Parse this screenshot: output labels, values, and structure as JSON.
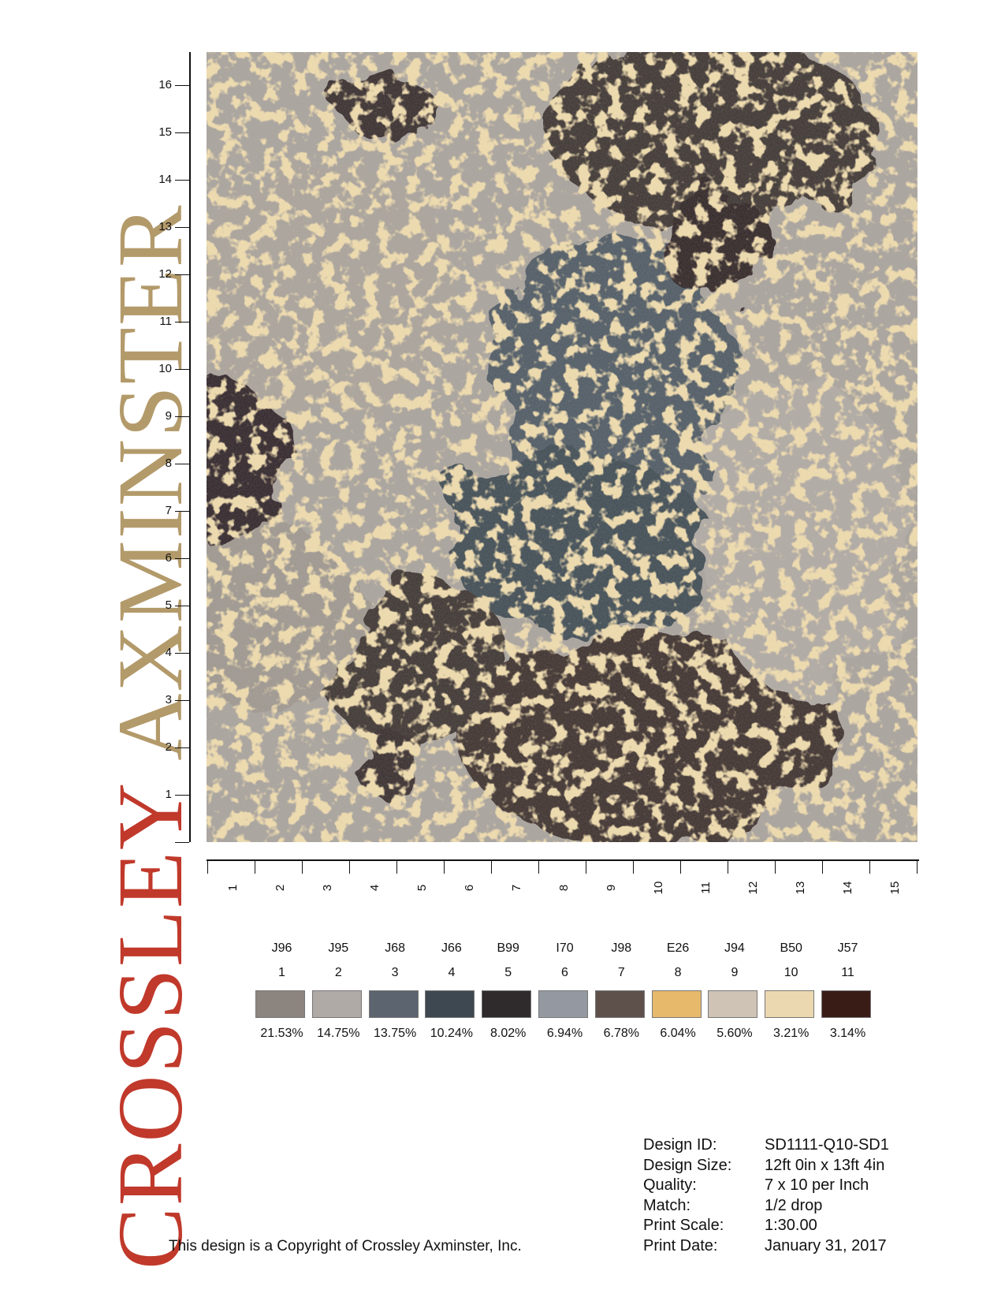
{
  "brand": {
    "word1": "CROSSLEY",
    "word2": "AXMINSTER"
  },
  "axes": {
    "y_labels": [
      "1",
      "2",
      "3",
      "4",
      "5",
      "6",
      "7",
      "8",
      "9",
      "10",
      "11",
      "12",
      "13",
      "14",
      "15",
      "16"
    ],
    "x_labels": [
      "1",
      "2",
      "3",
      "4",
      "5",
      "6",
      "7",
      "8",
      "9",
      "10",
      "11",
      "12",
      "13",
      "14",
      "15"
    ]
  },
  "colors": [
    {
      "code": "J96",
      "num": "1",
      "pct": "21.53%",
      "hex": "#8c847e"
    },
    {
      "code": "J95",
      "num": "2",
      "pct": "14.75%",
      "hex": "#b0aaa6"
    },
    {
      "code": "J68",
      "num": "3",
      "pct": "13.75%",
      "hex": "#5c6470"
    },
    {
      "code": "J66",
      "num": "4",
      "pct": "10.24%",
      "hex": "#3d4851"
    },
    {
      "code": "B99",
      "num": "5",
      "pct": "8.02%",
      "hex": "#2f2a2b"
    },
    {
      "code": "I70",
      "num": "6",
      "pct": "6.94%",
      "hex": "#9499a1"
    },
    {
      "code": "J98",
      "num": "7",
      "pct": "6.78%",
      "hex": "#5e514c"
    },
    {
      "code": "E26",
      "num": "8",
      "pct": "6.04%",
      "hex": "#e6b96b"
    },
    {
      "code": "J94",
      "num": "9",
      "pct": "5.60%",
      "hex": "#cfc3b6"
    },
    {
      "code": "B50",
      "num": "10",
      "pct": "3.21%",
      "hex": "#ecd8b0"
    },
    {
      "code": "J57",
      "num": "11",
      "pct": "3.14%",
      "hex": "#3a1c17"
    }
  ],
  "footer": {
    "copyright": "This design is a Copyright of Crossley Axminster, Inc.",
    "details": [
      {
        "label": "Design ID:",
        "value": "SD1111-Q10-SD1"
      },
      {
        "label": "Design Size:",
        "value": "12ft 0in x 13ft 4in"
      },
      {
        "label": "Quality:",
        "value": "7 x 10 per Inch"
      },
      {
        "label": "Match:",
        "value": "1/2 drop"
      },
      {
        "label": "Print Scale:",
        "value": "1:30.00"
      },
      {
        "label": "Print Date:",
        "value": "January 31, 2017"
      }
    ]
  }
}
